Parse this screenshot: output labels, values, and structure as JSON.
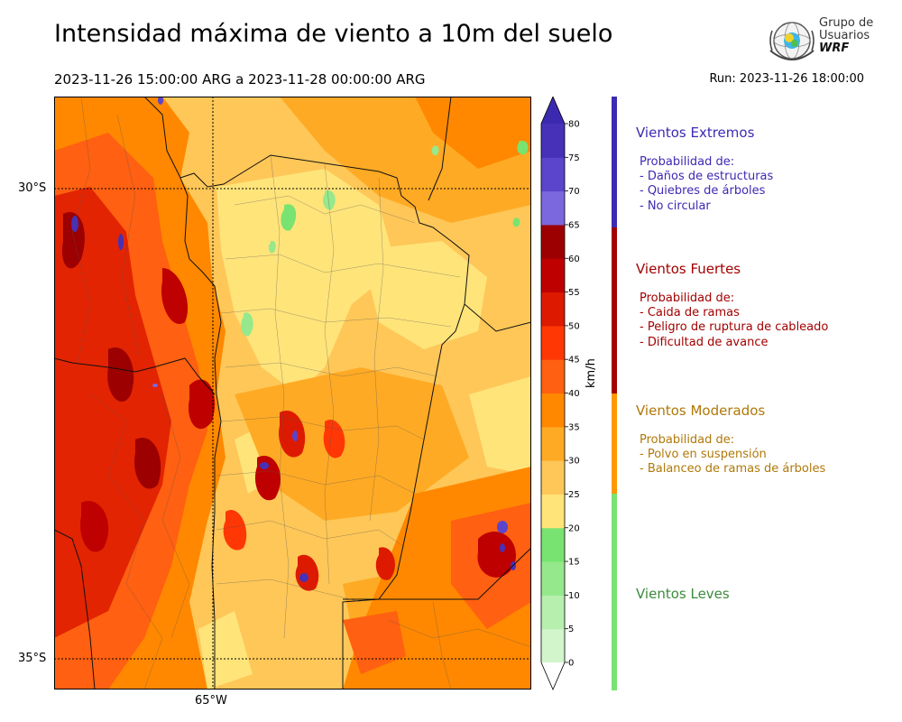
{
  "header": {
    "title": "Intensidad máxima de viento a 10m del suelo",
    "period": "2023-11-26 15:00:00 ARG  a  2023-11-28 00:00:00 ARG",
    "run": "Run: 2023-11-26 18:00:00"
  },
  "logo": {
    "line1": "Grupo de",
    "line2": "Usuarios",
    "line3": "WRF"
  },
  "map": {
    "lat_labels": [
      "30°S",
      "35°S"
    ],
    "lon_labels": [
      "65°W"
    ]
  },
  "colorbar": {
    "unit": "km/h",
    "ticks": [
      "0",
      "5",
      "10",
      "15",
      "20",
      "25",
      "30",
      "35",
      "40",
      "45",
      "50",
      "55",
      "60",
      "65",
      "70",
      "75",
      "80"
    ],
    "colors": [
      "#e8fbe6",
      "#d2f5cc",
      "#b6efae",
      "#96e88c",
      "#78e370",
      "#ffe47a",
      "#fec758",
      "#ffaa24",
      "#ff8800",
      "#ff6011",
      "#ff3705",
      "#dd1a00",
      "#bf0000",
      "#9c0000",
      "#7b68de",
      "#5a45cc",
      "#4631b8",
      "#3b2ab0"
    ]
  },
  "categories": [
    {
      "title": "Vientos Extremos",
      "color": "#3d2ab3",
      "intro": "Probabilidad de:",
      "items": [
        "- Daños de estructuras",
        "- Quiebres de árboles",
        "- No circular"
      ]
    },
    {
      "title": "Vientos Fuertes",
      "color": "#a30000",
      "intro": "Probabilidad de:",
      "items": [
        "- Caida de ramas",
        "- Peligro de ruptura de cableado",
        "- Dificultad de avance"
      ]
    },
    {
      "title": "Vientos Moderados",
      "color": "#b07808",
      "intro": "Probabilidad de:",
      "items": [
        "- Polvo en suspensión",
        "- Balanceo de ramas de árboles"
      ]
    },
    {
      "title": "Vientos Leves",
      "color": "#3b8a3b",
      "intro": "",
      "items": []
    }
  ],
  "severity_bar_colors": [
    "#3d2ab3",
    "#a30000",
    "#ff9900",
    "#78e370"
  ]
}
